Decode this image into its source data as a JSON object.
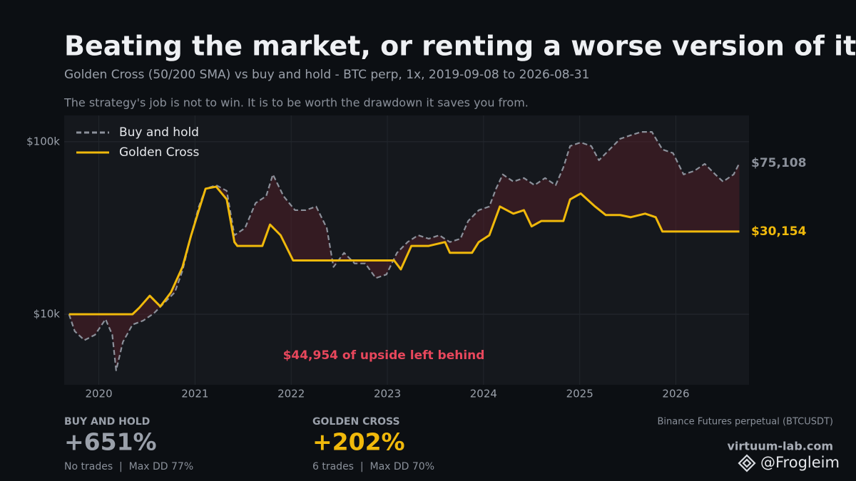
{
  "chart_data": {
    "type": "line",
    "title": "Beating the market, or renting a worse version of it",
    "subtitle": "Golden Cross (50/200 SMA) vs buy and hold - BTC perp, 1x, 2019-09-08 to 2026-08-31",
    "note": "The strategy's job is not to win. It is to be worth the drawdown it saves you from.",
    "annotation": "$44,954 of upside left behind",
    "log_y": true,
    "grid": true,
    "legend": "upper left",
    "xlim": [
      2019.64,
      2026.76
    ],
    "xticks": [
      2020,
      2021,
      2022,
      2023,
      2024,
      2025,
      2026
    ],
    "ylim": [
      3900,
      142000
    ],
    "yticks": [
      {
        "value": 10000,
        "label": "$10k"
      },
      {
        "value": 100000,
        "label": "$100k"
      }
    ],
    "series": [
      {
        "name": "Buy and hold",
        "color": "#8b909a",
        "dashed": true,
        "end_label": "$75,108",
        "x": [
          2019.69,
          2019.75,
          2019.85,
          2019.96,
          2020.07,
          2020.14,
          2020.18,
          2020.25,
          2020.35,
          2020.46,
          2020.57,
          2020.68,
          2020.79,
          2020.87,
          2020.96,
          2021.04,
          2021.11,
          2021.22,
          2021.33,
          2021.41,
          2021.52,
          2021.63,
          2021.74,
          2021.81,
          2021.92,
          2022.04,
          2022.15,
          2022.26,
          2022.37,
          2022.44,
          2022.55,
          2022.66,
          2022.77,
          2022.88,
          2022.99,
          2023.1,
          2023.21,
          2023.32,
          2023.43,
          2023.54,
          2023.65,
          2023.76,
          2023.84,
          2023.95,
          2024.06,
          2024.13,
          2024.2,
          2024.31,
          2024.42,
          2024.53,
          2024.64,
          2024.75,
          2024.83,
          2024.9,
          2025.01,
          2025.12,
          2025.2,
          2025.31,
          2025.42,
          2025.53,
          2025.64,
          2025.75,
          2025.86,
          2025.97,
          2026.08,
          2026.19,
          2026.3,
          2026.41,
          2026.49,
          2026.6,
          2026.66
        ],
        "values": [
          10000,
          7970,
          7070,
          7600,
          9360,
          7600,
          4730,
          6900,
          8700,
          9180,
          10100,
          11620,
          13400,
          17900,
          28700,
          42100,
          53400,
          56000,
          51900,
          28700,
          31600,
          44100,
          48400,
          64600,
          48400,
          40100,
          40100,
          42100,
          31600,
          18800,
          22700,
          19700,
          19700,
          16200,
          17000,
          22700,
          26200,
          28700,
          27400,
          28700,
          26200,
          27400,
          34700,
          40100,
          42100,
          53400,
          64600,
          58700,
          61600,
          56000,
          61600,
          56000,
          71000,
          94400,
          99000,
          94400,
          78100,
          90100,
          103900,
          109000,
          114000,
          114000,
          90100,
          85900,
          64600,
          67700,
          74400,
          64600,
          58700,
          64600,
          75108
        ]
      },
      {
        "name": "Golden Cross",
        "color": "#f0b90b",
        "dashed": false,
        "end_label": "$30,154",
        "x": [
          2019.69,
          2020.35,
          2020.42,
          2020.53,
          2020.64,
          2020.75,
          2020.87,
          2020.96,
          2021.04,
          2021.11,
          2021.22,
          2021.33,
          2021.41,
          2021.44,
          2021.7,
          2021.78,
          2021.89,
          2022.02,
          2023.07,
          2023.14,
          2023.25,
          2023.43,
          2023.6,
          2023.65,
          2023.88,
          2023.95,
          2024.06,
          2024.17,
          2024.31,
          2024.42,
          2024.5,
          2024.6,
          2024.83,
          2024.9,
          2025.01,
          2025.16,
          2025.27,
          2025.42,
          2025.53,
          2025.68,
          2025.79,
          2025.86,
          2026.66
        ],
        "values": [
          10000,
          10000,
          10900,
          12800,
          11100,
          13400,
          18800,
          28700,
          40100,
          53400,
          54900,
          46300,
          26200,
          24900,
          24900,
          33100,
          28700,
          20500,
          20500,
          18200,
          24900,
          24900,
          26200,
          22700,
          22700,
          26200,
          28700,
          42100,
          38300,
          40100,
          32300,
          34700,
          34700,
          46300,
          50100,
          42100,
          37600,
          37600,
          36500,
          38300,
          36500,
          30154,
          30154
        ]
      }
    ]
  },
  "stats": [
    {
      "label": "BUY AND HOLD",
      "value": "+651%",
      "detail": "No trades  |  Max DD 77%"
    },
    {
      "label": "GOLDEN CROSS",
      "value": "+202%",
      "detail": "6 trades  |  Max DD 70%"
    }
  ],
  "source": "Binance Futures perpetual (BTCUSDT)",
  "site": "virtuum-lab.com",
  "watermark": "@Frogleim"
}
